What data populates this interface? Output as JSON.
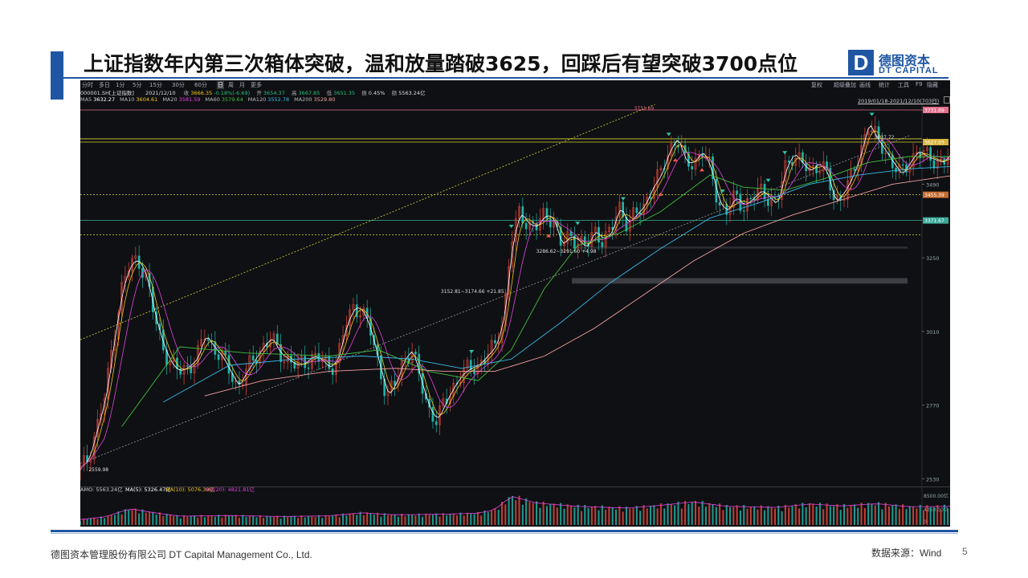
{
  "slide": {
    "title": "上证指数年内第三次箱体突破，温和放量踏破3625，回踩后有望突破3700点位",
    "logo": {
      "letter": "D",
      "cn": "德图资本",
      "en": "DT CAPITAL"
    },
    "footer": "德图资本管理股份有限公司  DT Capital Management  Co., Ltd.",
    "source": "数据来源：Wind",
    "page": "5"
  },
  "toolbar": {
    "periods": [
      "分时",
      "多日",
      "1分",
      "5分",
      "15分",
      "30分",
      "60分",
      "日",
      "周",
      "月",
      "更多"
    ],
    "active": "日",
    "right": [
      "复权",
      "超级叠加",
      "画线",
      "统计",
      "工具",
      "F9",
      "隐藏"
    ]
  },
  "info": {
    "code": "000001.SH[上证指数]",
    "date": "2021/12/10",
    "close_label": "收",
    "close": "3666.35",
    "change": "-0.18%(-6.69)",
    "open_label": "开",
    "open": "3654.37",
    "high_label": "高",
    "high": "3667.85",
    "low_label": "低",
    "low": "3651.35",
    "amp_label": "振",
    "amp": "0.45%",
    "amount_label": "额",
    "amount": "5563.24亿",
    "range": "2019/01/18-2021/12/10(703日)",
    "ma": [
      {
        "label": "MA5",
        "value": "3632.27",
        "color": "#ffffff"
      },
      {
        "label": "MA10",
        "value": "3604.61",
        "color": "#f2c618"
      },
      {
        "label": "MA20",
        "value": "3581.59",
        "color": "#e043e0"
      },
      {
        "label": "MA60",
        "value": "3579.64",
        "color": "#3fbf3f"
      },
      {
        "label": "MA120",
        "value": "3552.78",
        "color": "#38b8e8"
      },
      {
        "label": "MA200",
        "value": "3529.80",
        "color": "#f0a0a0"
      }
    ]
  },
  "chart_data": {
    "type": "line",
    "title": "",
    "y_ticks": [
      3730,
      3490,
      3250,
      3010,
      2770,
      2530
    ],
    "ylim": [
      2505,
      3750
    ],
    "colors": {
      "candle_up": "#e8483b",
      "candle_down": "#22b3a8",
      "hline_yellow": "#d8d23a",
      "hline_pink": "#e46d8a",
      "hline_teal": "#3aa99a"
    },
    "level_tags": [
      {
        "value": "3731.69",
        "y": 3731.69,
        "color": "#e46d8a"
      },
      {
        "value": "3627.03",
        "y": 3627.03,
        "color": "#d8b33a"
      },
      {
        "value": "3455.39",
        "y": 3455.39,
        "color": "#c76a2e"
      },
      {
        "value": "3371.67",
        "y": 3371.67,
        "color": "#3aa99a"
      }
    ],
    "annotations": [
      {
        "text": "3731.69",
        "x": 0.668,
        "y": 3731.69
      },
      {
        "text": "3637.72",
        "x": 0.958,
        "y": 3637.72
      },
      {
        "text": "3286.62~3291.60  +4.98",
        "x": 0.55,
        "y": 3266
      },
      {
        "text": "3152.81~3174.66  +21.85",
        "x": 0.435,
        "y": 3135
      },
      {
        "text": "2559.98",
        "x": 0.01,
        "y": 2555
      }
    ],
    "zones": [
      {
        "y1": 3166,
        "y2": 3184
      },
      {
        "y1": 3280,
        "y2": 3287
      }
    ],
    "horizontal_lines": [
      3731.69,
      3637.72,
      3627.03,
      3455.39,
      3371.67,
      3325
    ],
    "down_arrows_x": [
      0.472,
      0.52,
      0.6,
      0.655,
      0.71,
      0.775,
      0.83,
      0.85,
      0.955
    ],
    "up_arrows_x": [
      0.565,
      0.7,
      0.718,
      0.75
    ],
    "trend_upper": [
      [
        0.0,
        2983
      ],
      [
        0.77,
        3835
      ]
    ],
    "trend_lower": [
      [
        0.0,
        2580
      ],
      [
        1.0,
        3648
      ]
    ],
    "series": [
      {
        "key": "close",
        "points": [
          [
            0.0,
            2560
          ],
          [
            0.01,
            2600
          ],
          [
            0.02,
            2700
          ],
          [
            0.03,
            2800
          ],
          [
            0.04,
            2990
          ],
          [
            0.05,
            3150
          ],
          [
            0.06,
            3230
          ],
          [
            0.07,
            3245
          ],
          [
            0.08,
            3180
          ],
          [
            0.09,
            3050
          ],
          [
            0.1,
            2960
          ],
          [
            0.11,
            2900
          ],
          [
            0.12,
            2880
          ],
          [
            0.13,
            2895
          ],
          [
            0.14,
            2920
          ],
          [
            0.15,
            3000
          ],
          [
            0.16,
            2960
          ],
          [
            0.17,
            2930
          ],
          [
            0.18,
            2880
          ],
          [
            0.19,
            2830
          ],
          [
            0.2,
            2880
          ],
          [
            0.21,
            2920
          ],
          [
            0.22,
            2960
          ],
          [
            0.23,
            2990
          ],
          [
            0.24,
            2940
          ],
          [
            0.25,
            2920
          ],
          [
            0.26,
            2900
          ],
          [
            0.27,
            2905
          ],
          [
            0.28,
            2930
          ],
          [
            0.29,
            2920
          ],
          [
            0.3,
            2890
          ],
          [
            0.31,
            2920
          ],
          [
            0.32,
            3030
          ],
          [
            0.33,
            3090
          ],
          [
            0.34,
            3080
          ],
          [
            0.35,
            3010
          ],
          [
            0.36,
            2900
          ],
          [
            0.37,
            2800
          ],
          [
            0.38,
            2840
          ],
          [
            0.39,
            2920
          ],
          [
            0.4,
            2950
          ],
          [
            0.41,
            2850
          ],
          [
            0.42,
            2760
          ],
          [
            0.43,
            2720
          ],
          [
            0.44,
            2780
          ],
          [
            0.45,
            2830
          ],
          [
            0.46,
            2870
          ],
          [
            0.47,
            2890
          ],
          [
            0.48,
            2900
          ],
          [
            0.49,
            2930
          ],
          [
            0.5,
            2960
          ],
          [
            0.51,
            3050
          ],
          [
            0.52,
            3300
          ],
          [
            0.53,
            3400
          ],
          [
            0.54,
            3360
          ],
          [
            0.55,
            3350
          ],
          [
            0.56,
            3390
          ],
          [
            0.57,
            3380
          ],
          [
            0.58,
            3290
          ],
          [
            0.59,
            3320
          ],
          [
            0.6,
            3310
          ],
          [
            0.61,
            3280
          ],
          [
            0.62,
            3340
          ],
          [
            0.63,
            3310
          ],
          [
            0.64,
            3330
          ],
          [
            0.65,
            3420
          ],
          [
            0.66,
            3360
          ],
          [
            0.67,
            3390
          ],
          [
            0.68,
            3420
          ],
          [
            0.69,
            3480
          ],
          [
            0.7,
            3520
          ],
          [
            0.71,
            3600
          ],
          [
            0.72,
            3640
          ],
          [
            0.73,
            3560
          ],
          [
            0.74,
            3560
          ],
          [
            0.75,
            3600
          ],
          [
            0.76,
            3540
          ],
          [
            0.77,
            3430
          ],
          [
            0.78,
            3400
          ],
          [
            0.79,
            3450
          ],
          [
            0.8,
            3420
          ],
          [
            0.81,
            3440
          ],
          [
            0.82,
            3470
          ],
          [
            0.83,
            3450
          ],
          [
            0.84,
            3420
          ],
          [
            0.85,
            3540
          ],
          [
            0.86,
            3590
          ],
          [
            0.87,
            3560
          ],
          [
            0.88,
            3530
          ],
          [
            0.89,
            3560
          ],
          [
            0.9,
            3530
          ],
          [
            0.91,
            3430
          ],
          [
            0.92,
            3460
          ],
          [
            0.93,
            3510
          ],
          [
            0.94,
            3580
          ],
          [
            0.95,
            3690
          ],
          [
            0.96,
            3640
          ],
          [
            0.97,
            3600
          ],
          [
            0.98,
            3560
          ],
          [
            0.99,
            3520
          ],
          [
            1.0,
            3560
          ],
          [
            1.01,
            3600
          ],
          [
            1.02,
            3580
          ],
          [
            1.03,
            3570
          ],
          [
            1.04,
            3560
          ],
          [
            1.05,
            3590
          ],
          [
            1.06,
            3610
          ],
          [
            1.07,
            3630
          ],
          [
            1.08,
            3666
          ]
        ]
      },
      {
        "key": "ma60",
        "points": [
          [
            0.05,
            2700
          ],
          [
            0.12,
            2960
          ],
          [
            0.2,
            2940
          ],
          [
            0.3,
            2930
          ],
          [
            0.36,
            2950
          ],
          [
            0.42,
            2880
          ],
          [
            0.48,
            2850
          ],
          [
            0.52,
            2950
          ],
          [
            0.56,
            3150
          ],
          [
            0.6,
            3290
          ],
          [
            0.65,
            3330
          ],
          [
            0.7,
            3400
          ],
          [
            0.76,
            3520
          ],
          [
            0.8,
            3480
          ],
          [
            0.85,
            3470
          ],
          [
            0.9,
            3510
          ],
          [
            0.95,
            3560
          ],
          [
            1.0,
            3580
          ],
          [
            1.08,
            3579
          ]
        ]
      },
      {
        "key": "ma120",
        "points": [
          [
            0.1,
            2780
          ],
          [
            0.18,
            2900
          ],
          [
            0.26,
            2920
          ],
          [
            0.34,
            2930
          ],
          [
            0.4,
            2920
          ],
          [
            0.46,
            2890
          ],
          [
            0.52,
            2920
          ],
          [
            0.58,
            3040
          ],
          [
            0.64,
            3170
          ],
          [
            0.7,
            3280
          ],
          [
            0.76,
            3380
          ],
          [
            0.82,
            3430
          ],
          [
            0.88,
            3490
          ],
          [
            0.94,
            3520
          ],
          [
            1.0,
            3540
          ],
          [
            1.08,
            3552
          ]
        ]
      },
      {
        "key": "ma200",
        "points": [
          [
            0.15,
            2800
          ],
          [
            0.22,
            2850
          ],
          [
            0.3,
            2880
          ],
          [
            0.38,
            2890
          ],
          [
            0.44,
            2880
          ],
          [
            0.5,
            2880
          ],
          [
            0.56,
            2930
          ],
          [
            0.62,
            3020
          ],
          [
            0.68,
            3130
          ],
          [
            0.74,
            3240
          ],
          [
            0.8,
            3330
          ],
          [
            0.86,
            3390
          ],
          [
            0.92,
            3440
          ],
          [
            0.98,
            3490
          ],
          [
            1.08,
            3529
          ]
        ]
      }
    ],
    "volume": {
      "label": "AMO: 5563.24亿",
      "ma_labels": [
        {
          "text": "MA(5): 5326.47亿",
          "color": "#ffffff"
        },
        {
          "text": "MA(10): 5076.39亿",
          "color": "#f2c618"
        },
        {
          "text": "MA(20): 4821.81亿",
          "color": "#e043e0"
        }
      ],
      "y_ticks": [
        "8500.00亿",
        "4250.00亿",
        "0"
      ],
      "max": 9000,
      "profile": [
        [
          0.0,
          1600
        ],
        [
          0.03,
          2400
        ],
        [
          0.06,
          4800
        ],
        [
          0.09,
          3600
        ],
        [
          0.12,
          2600
        ],
        [
          0.18,
          2800
        ],
        [
          0.24,
          2500
        ],
        [
          0.3,
          2700
        ],
        [
          0.34,
          3600
        ],
        [
          0.38,
          3000
        ],
        [
          0.44,
          3200
        ],
        [
          0.48,
          3500
        ],
        [
          0.5,
          4500
        ],
        [
          0.52,
          8500
        ],
        [
          0.55,
          6500
        ],
        [
          0.6,
          5500
        ],
        [
          0.66,
          5000
        ],
        [
          0.7,
          5800
        ],
        [
          0.74,
          6800
        ],
        [
          0.78,
          5500
        ],
        [
          0.84,
          5200
        ],
        [
          0.88,
          6200
        ],
        [
          0.92,
          5600
        ],
        [
          0.96,
          6300
        ],
        [
          1.0,
          5400
        ],
        [
          1.08,
          5563
        ]
      ]
    }
  }
}
